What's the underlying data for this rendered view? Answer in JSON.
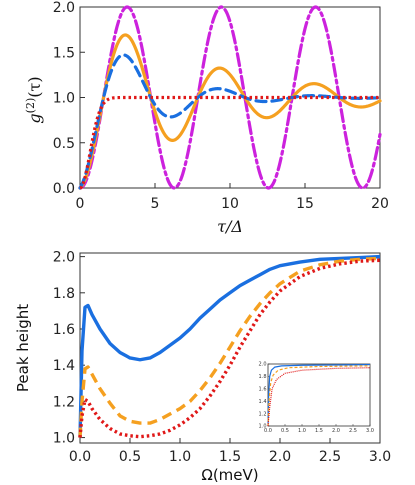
{
  "chart_data": [
    {
      "type": "line",
      "xlabel": "τ/Δ",
      "ylabel": "g(2)(τ)",
      "ylabel_parts": {
        "main": "g",
        "sup": "(2)",
        "arg": "(τ)"
      },
      "xlim": [
        0,
        20
      ],
      "ylim": [
        0,
        2
      ],
      "xticks": [
        0,
        5,
        10,
        15,
        20
      ],
      "yticks": [
        "0.0",
        "0.5",
        "1.0",
        "1.5",
        "2.0"
      ],
      "series": [
        {
          "style": "dashdot",
          "color": "#cc22dd",
          "model": {
            "amp": 1.0,
            "gamma": 0.0,
            "omega": 1.0
          }
        },
        {
          "style": "solid",
          "color": "#f5a020",
          "model": {
            "amp": 1.0,
            "gamma": 0.12,
            "omega": 1.0
          }
        },
        {
          "style": "dashed",
          "color": "#1a6fe0",
          "model": {
            "amp": 1.0,
            "gamma": 0.25,
            "omega": 1.0
          }
        },
        {
          "style": "dotted",
          "color": "#e01818",
          "model": {
            "amp": 1.0,
            "gamma": 1.1,
            "omega": 0.0
          }
        }
      ]
    },
    {
      "type": "line",
      "xlabel": "Ω(meV)",
      "ylabel": "Peak height",
      "xlim": [
        0,
        3
      ],
      "ylim": [
        0.97,
        2.02
      ],
      "xticks": [
        "0.0",
        "0.5",
        "1.0",
        "1.5",
        "2.0",
        "2.5",
        "3.0"
      ],
      "yticks": [
        "1.0",
        "1.2",
        "1.4",
        "1.6",
        "1.8",
        "2.0"
      ],
      "series": [
        {
          "style": "solid",
          "color": "#1a6fe0",
          "points": [
            [
              0.0,
              1.0
            ],
            [
              0.02,
              1.48
            ],
            [
              0.05,
              1.72
            ],
            [
              0.08,
              1.73
            ],
            [
              0.12,
              1.68
            ],
            [
              0.2,
              1.6
            ],
            [
              0.3,
              1.52
            ],
            [
              0.4,
              1.47
            ],
            [
              0.5,
              1.44
            ],
            [
              0.6,
              1.43
            ],
            [
              0.7,
              1.44
            ],
            [
              0.8,
              1.47
            ],
            [
              0.9,
              1.51
            ],
            [
              1.0,
              1.55
            ],
            [
              1.1,
              1.6
            ],
            [
              1.2,
              1.66
            ],
            [
              1.3,
              1.71
            ],
            [
              1.4,
              1.76
            ],
            [
              1.5,
              1.8
            ],
            [
              1.6,
              1.84
            ],
            [
              1.7,
              1.87
            ],
            [
              1.8,
              1.9
            ],
            [
              1.9,
              1.93
            ],
            [
              2.0,
              1.95
            ],
            [
              2.2,
              1.97
            ],
            [
              2.4,
              1.985
            ],
            [
              2.6,
              1.99
            ],
            [
              2.8,
              1.995
            ],
            [
              3.0,
              2.0
            ]
          ]
        },
        {
          "style": "dashed",
          "color": "#f5a020",
          "points": [
            [
              0.0,
              1.0
            ],
            [
              0.02,
              1.2
            ],
            [
              0.05,
              1.38
            ],
            [
              0.08,
              1.39
            ],
            [
              0.12,
              1.35
            ],
            [
              0.2,
              1.27
            ],
            [
              0.3,
              1.19
            ],
            [
              0.4,
              1.12
            ],
            [
              0.5,
              1.09
            ],
            [
              0.6,
              1.08
            ],
            [
              0.7,
              1.08
            ],
            [
              0.8,
              1.1
            ],
            [
              0.9,
              1.13
            ],
            [
              1.0,
              1.16
            ],
            [
              1.1,
              1.2
            ],
            [
              1.2,
              1.26
            ],
            [
              1.3,
              1.33
            ],
            [
              1.4,
              1.41
            ],
            [
              1.5,
              1.5
            ],
            [
              1.6,
              1.59
            ],
            [
              1.7,
              1.67
            ],
            [
              1.8,
              1.74
            ],
            [
              1.9,
              1.8
            ],
            [
              2.0,
              1.85
            ],
            [
              2.2,
              1.92
            ],
            [
              2.4,
              1.955
            ],
            [
              2.6,
              1.975
            ],
            [
              2.8,
              1.985
            ],
            [
              3.0,
              1.99
            ]
          ]
        },
        {
          "style": "dotted",
          "color": "#e01818",
          "points": [
            [
              0.0,
              1.0
            ],
            [
              0.02,
              1.12
            ],
            [
              0.05,
              1.21
            ],
            [
              0.08,
              1.2
            ],
            [
              0.12,
              1.16
            ],
            [
              0.2,
              1.1
            ],
            [
              0.3,
              1.05
            ],
            [
              0.4,
              1.02
            ],
            [
              0.5,
              1.01
            ],
            [
              0.6,
              1.005
            ],
            [
              0.7,
              1.01
            ],
            [
              0.8,
              1.02
            ],
            [
              0.9,
              1.04
            ],
            [
              1.0,
              1.07
            ],
            [
              1.1,
              1.11
            ],
            [
              1.2,
              1.16
            ],
            [
              1.3,
              1.23
            ],
            [
              1.4,
              1.31
            ],
            [
              1.5,
              1.4
            ],
            [
              1.6,
              1.5
            ],
            [
              1.7,
              1.59
            ],
            [
              1.8,
              1.68
            ],
            [
              1.9,
              1.75
            ],
            [
              2.0,
              1.81
            ],
            [
              2.2,
              1.89
            ],
            [
              2.4,
              1.935
            ],
            [
              2.6,
              1.96
            ],
            [
              2.8,
              1.975
            ],
            [
              3.0,
              1.98
            ]
          ]
        }
      ],
      "inset": {
        "xlim": [
          0,
          3
        ],
        "ylim": [
          1.0,
          2.0
        ],
        "xticks": [
          "0.0",
          "0.5",
          "1.0",
          "1.5",
          "2.0",
          "2.5",
          "3.0"
        ],
        "yticks": [
          "1.0",
          "1.2",
          "1.4",
          "1.6",
          "1.8",
          "2.0"
        ],
        "series": [
          {
            "style": "solid",
            "color": "#1a6fe0",
            "points": [
              [
                0,
                1.0
              ],
              [
                0.02,
                1.5
              ],
              [
                0.05,
                1.8
              ],
              [
                0.1,
                1.9
              ],
              [
                0.2,
                1.95
              ],
              [
                0.4,
                1.97
              ],
              [
                1.0,
                1.98
              ],
              [
                3.0,
                1.99
              ]
            ]
          },
          {
            "style": "dashed",
            "color": "#f5a020",
            "points": [
              [
                0,
                1.0
              ],
              [
                0.03,
                1.4
              ],
              [
                0.08,
                1.7
              ],
              [
                0.15,
                1.82
              ],
              [
                0.3,
                1.9
              ],
              [
                0.6,
                1.94
              ],
              [
                1.5,
                1.96
              ],
              [
                3.0,
                1.97
              ]
            ]
          },
          {
            "style": "dotted",
            "color": "#e01818",
            "points": [
              [
                0,
                1.0
              ],
              [
                0.05,
                1.3
              ],
              [
                0.12,
                1.6
              ],
              [
                0.25,
                1.75
              ],
              [
                0.5,
                1.85
              ],
              [
                1.0,
                1.9
              ],
              [
                2.0,
                1.93
              ],
              [
                3.0,
                1.94
              ]
            ]
          }
        ]
      }
    }
  ]
}
